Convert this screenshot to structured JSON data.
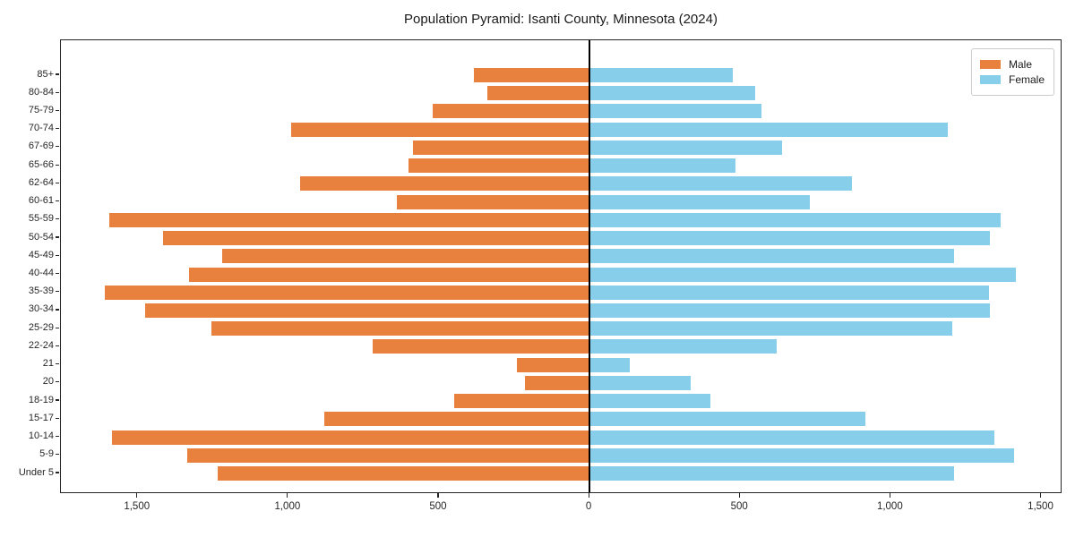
{
  "title": "Population Pyramid: Isanti County, Minnesota (2024)",
  "legend": {
    "male_label": "Male",
    "female_label": "Female",
    "position": "upper right"
  },
  "colors": {
    "male": "#E8803E",
    "female": "#87CEEB",
    "axis": "#262626",
    "zero_line": "#000000",
    "background": "#ffffff"
  },
  "x_axis": {
    "tick_values": [
      -1500,
      -1000,
      -500,
      0,
      500,
      1000,
      1500
    ],
    "tick_labels": [
      "1,500",
      "1,000",
      "500",
      "0",
      "500",
      "1,000",
      "1,500"
    ]
  },
  "chart_data": {
    "type": "bar",
    "orientation": "horizontal",
    "title": "Population Pyramid: Isanti County, Minnesota (2024)",
    "categories": [
      "85+",
      "80-84",
      "75-79",
      "70-74",
      "67-69",
      "65-66",
      "62-64",
      "60-61",
      "55-59",
      "50-54",
      "45-49",
      "40-44",
      "35-39",
      "30-34",
      "25-29",
      "22-24",
      "21",
      "20",
      "18-19",
      "15-17",
      "10-14",
      "5-9",
      "Under 5"
    ],
    "series": [
      {
        "name": "Male",
        "side": "left",
        "color": "#E8803E",
        "values": [
          385,
          340,
          520,
          990,
          585,
          600,
          960,
          640,
          1595,
          1415,
          1220,
          1330,
          1610,
          1475,
          1255,
          720,
          240,
          215,
          450,
          880,
          1585,
          1335,
          1235
        ]
      },
      {
        "name": "Female",
        "side": "right",
        "color": "#87CEEB",
        "values": [
          475,
          550,
          570,
          1190,
          640,
          485,
          870,
          730,
          1365,
          1330,
          1210,
          1415,
          1325,
          1330,
          1205,
          620,
          135,
          335,
          400,
          915,
          1345,
          1410,
          1210
        ]
      }
    ],
    "xlim": [
      -1755,
      1570
    ],
    "grid": false,
    "legend_position": "upper right"
  }
}
